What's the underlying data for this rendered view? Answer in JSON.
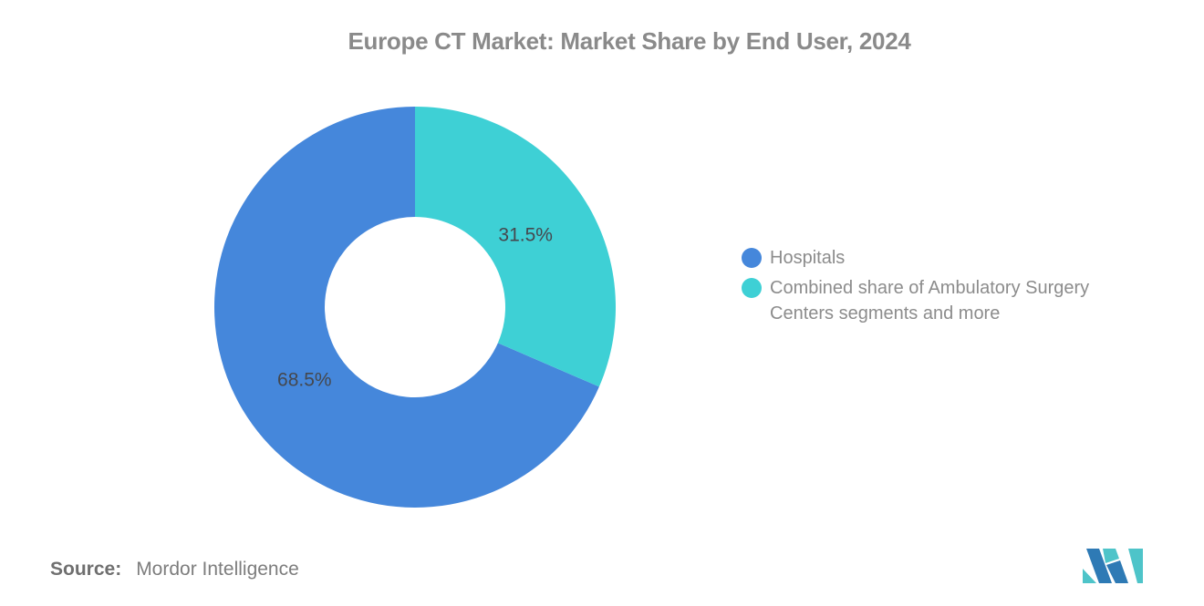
{
  "title": "Europe CT Market: Market Share by End User, 2024",
  "chart_data": {
    "type": "pie",
    "donut": true,
    "title": "Europe CT Market: Market Share by End User, 2024",
    "slices": [
      {
        "name": "Hospitals",
        "value": 68.5,
        "label": "68.5%",
        "color": "#4587db"
      },
      {
        "name": "Combined share of Ambulatory Surgery Centers segments and more",
        "value": 31.5,
        "label": "31.5%",
        "color": "#3ed0d5"
      }
    ],
    "start_angle": 0,
    "direction": "counterclockwise",
    "legend_position": "right",
    "grid": false,
    "label_color": "#45484e"
  },
  "legend": {
    "items": [
      {
        "label": "Hospitals"
      },
      {
        "label": "Combined share of Ambulatory Surgery Centers segments and more"
      }
    ]
  },
  "source": {
    "label": "Source:",
    "value": "Mordor Intelligence"
  },
  "logo": {
    "name": "mordor-intelligence-logo",
    "teal": "#4ec4c9",
    "blue": "#2e7ab5"
  },
  "colors": {
    "title_text": "#8a8a8a",
    "legend_text": "#8c8c8c",
    "slice_label_text": "#45484e",
    "background": "#ffffff"
  }
}
